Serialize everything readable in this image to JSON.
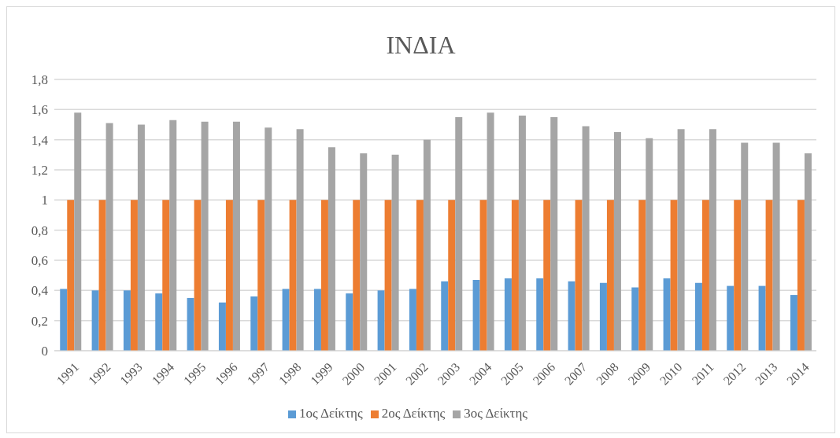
{
  "chart_data": {
    "type": "bar",
    "title": "ΙΝΔΙΑ",
    "categories": [
      "1991",
      "1992",
      "1993",
      "1994",
      "1995",
      "1996",
      "1997",
      "1998",
      "1999",
      "2000",
      "2001",
      "2002",
      "2003",
      "2004",
      "2005",
      "2006",
      "2007",
      "2008",
      "2009",
      "2010",
      "2011",
      "2012",
      "2013",
      "2014"
    ],
    "series": [
      {
        "name": "1ος Δείκτης",
        "color": "#5b9bd5",
        "values": [
          0.41,
          0.4,
          0.4,
          0.38,
          0.35,
          0.32,
          0.36,
          0.41,
          0.41,
          0.38,
          0.4,
          0.41,
          0.46,
          0.47,
          0.48,
          0.48,
          0.46,
          0.45,
          0.42,
          0.48,
          0.45,
          0.43,
          0.43,
          0.37
        ]
      },
      {
        "name": "2ος Δείκτης",
        "color": "#ed7d31",
        "values": [
          1,
          1,
          1,
          1,
          1,
          1,
          1,
          1,
          1,
          1,
          1,
          1,
          1,
          1,
          1,
          1,
          1,
          1,
          1,
          1,
          1,
          1,
          1,
          1
        ]
      },
      {
        "name": "3ος Δείκτης",
        "color": "#a5a5a5",
        "values": [
          1.58,
          1.51,
          1.5,
          1.53,
          1.52,
          1.52,
          1.48,
          1.47,
          1.35,
          1.31,
          1.3,
          1.4,
          1.55,
          1.58,
          1.56,
          1.55,
          1.49,
          1.45,
          1.41,
          1.47,
          1.47,
          1.38,
          1.38,
          1.31
        ]
      }
    ],
    "ylim": [
      0,
      1.8
    ],
    "yticks": [
      0,
      {
        "value": 0.2,
        "label": "0,2"
      },
      {
        "value": 0.4,
        "label": "0,4"
      },
      {
        "value": 0.6,
        "label": "0,6"
      },
      {
        "value": 0.8,
        "label": "0,8"
      },
      1,
      {
        "value": 1.2,
        "label": "1,2"
      },
      {
        "value": 1.4,
        "label": "1,4"
      },
      {
        "value": 1.6,
        "label": "1,6"
      },
      {
        "value": 1.8,
        "label": "1,8"
      }
    ],
    "grid": "y",
    "legend": "bottom"
  }
}
